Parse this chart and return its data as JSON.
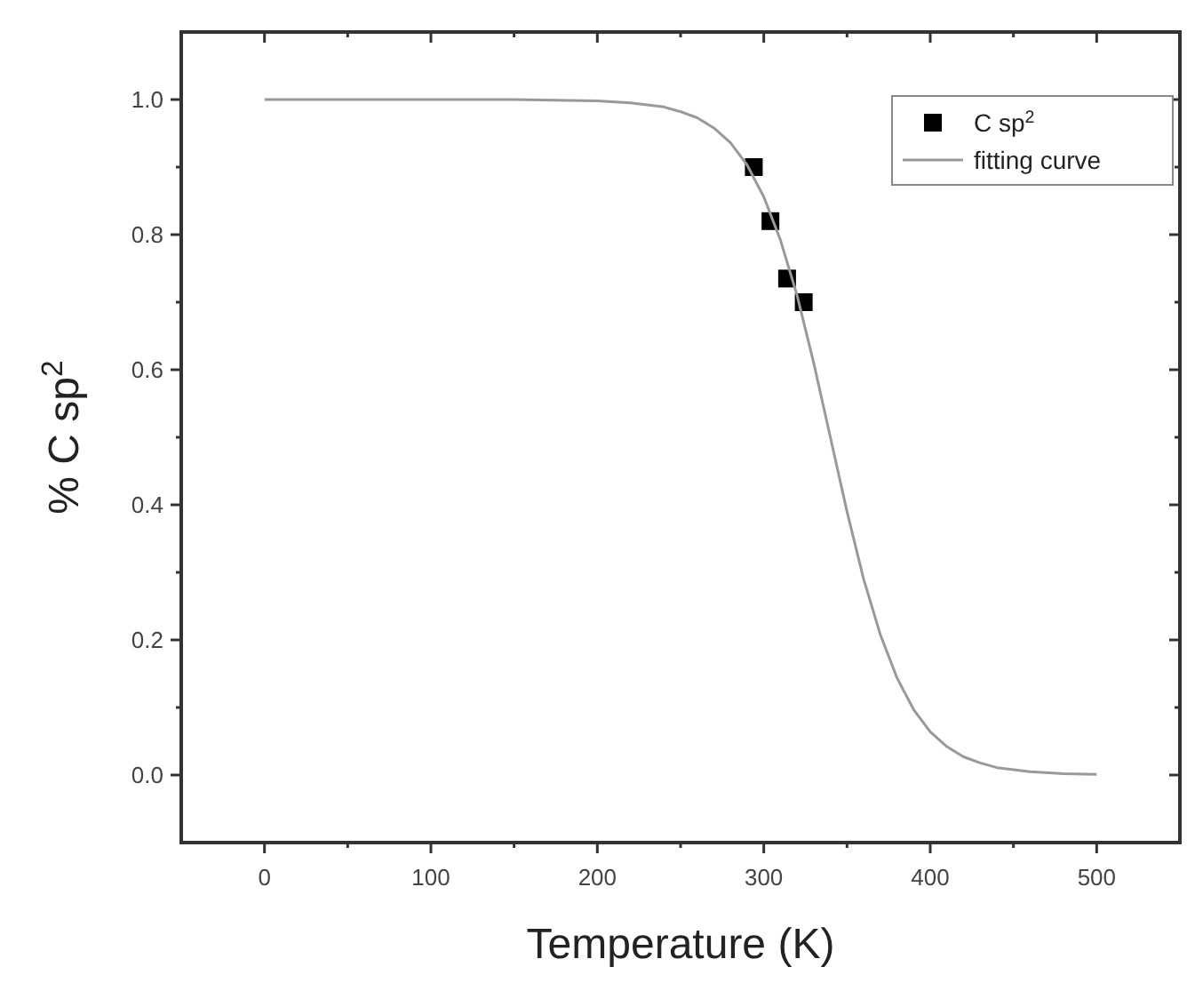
{
  "chart_data": {
    "type": "scatter",
    "xlabel": "Temperature (K)",
    "ylabel": "% C sp$^{2}$",
    "xlim": [
      -50,
      550
    ],
    "ylim": [
      -0.1,
      1.1
    ],
    "xticks": [
      0,
      {
        "value": 50,
        "label": null
      },
      100,
      {
        "value": 150,
        "label": null
      },
      200,
      {
        "value": 250,
        "label": null
      },
      300,
      {
        "value": 350,
        "label": null
      },
      400,
      {
        "value": 450,
        "label": null
      },
      500
    ],
    "yticks": [
      {
        "value": 0,
        "label": "0.0"
      },
      {
        "value": 0.1,
        "label": null
      },
      0.2,
      {
        "value": 0.3,
        "label": null
      },
      0.4,
      {
        "value": 0.5,
        "label": null
      },
      0.6,
      {
        "value": 0.7,
        "label": null
      },
      0.8,
      {
        "value": 0.9,
        "label": null
      },
      {
        "value": 1,
        "label": "1.0"
      }
    ],
    "legend": "top right",
    "grid": false,
    "series": [
      {
        "name": "C sp$^{2}$",
        "marker": "square",
        "color": "#000000",
        "x": [
          294,
          304,
          314,
          324
        ],
        "values": [
          0.9,
          0.82,
          0.735,
          0.7
        ]
      },
      {
        "name": "fitting curve",
        "type": "line",
        "marker": "none",
        "line_style": "solid",
        "color": "#999999",
        "x": [
          0,
          50,
          100,
          150,
          200,
          220,
          240,
          250,
          260,
          270,
          280,
          290,
          300,
          310,
          320,
          330,
          340,
          350,
          360,
          370,
          380,
          390,
          400,
          410,
          420,
          430,
          440,
          460,
          480,
          500
        ],
        "values": [
          1,
          1,
          1,
          1,
          0.998,
          0.995,
          0.989,
          0.982,
          0.973,
          0.958,
          0.936,
          0.903,
          0.856,
          0.792,
          0.71,
          0.61,
          0.5,
          0.39,
          0.29,
          0.208,
          0.144,
          0.097,
          0.064,
          0.042,
          0.027,
          0.018,
          0.011,
          0.005,
          0.002,
          0.001
        ]
      }
    ]
  }
}
